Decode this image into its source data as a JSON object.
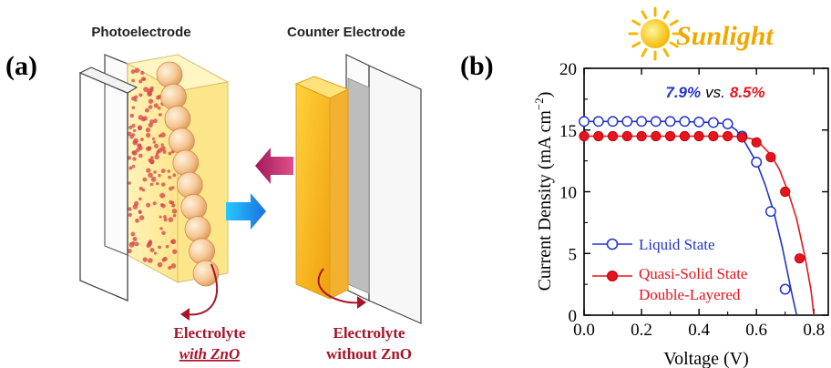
{
  "panel_a": {
    "label": "(a)",
    "photoelectrode_title": "Photoelectrode",
    "counter_title": "Counter Electrode",
    "electrolyte_left_line1": "Electrolyte",
    "electrolyte_left_line2": "with ZnO",
    "electrolyte_right_line1": "Electrolyte",
    "electrolyte_right_line2": "without ZnO"
  },
  "panel_b": {
    "label": "(b)",
    "sunlight_text": "Sunlight",
    "efficiency_liquid": "7.9%",
    "efficiency_vs": "vs.",
    "efficiency_quasi": "8.5%"
  },
  "colors": {
    "liquid": "#2233cc",
    "quasi": "#e8141c",
    "electrolyte_label": "#a8142a",
    "sun": "#f5b800",
    "sunlight_text": "#f0a800"
  },
  "chart_data": {
    "type": "line",
    "xlabel": "Voltage (V)",
    "ylabel": "Current Density (mA cm",
    "ylabel_sup": "−2",
    "ylabel_end": ")",
    "xlim": [
      0.0,
      0.85
    ],
    "ylim": [
      0,
      20
    ],
    "xticks": [
      "0.0",
      "0.2",
      "0.4",
      "0.6",
      "0.8"
    ],
    "yticks": [
      "0",
      "5",
      "10",
      "15",
      "20"
    ],
    "grid": false,
    "legend_position": "bottom-left",
    "series": [
      {
        "name": "Liquid State",
        "marker": "open-circle",
        "curve_x": [
          0.0,
          0.1,
          0.2,
          0.3,
          0.4,
          0.45,
          0.5,
          0.53,
          0.56,
          0.6,
          0.63,
          0.66,
          0.69,
          0.72,
          0.74
        ],
        "curve_y": [
          15.7,
          15.7,
          15.7,
          15.7,
          15.65,
          15.6,
          15.5,
          15.0,
          14.0,
          12.4,
          10.6,
          8.4,
          5.5,
          2.1,
          0.0
        ],
        "points_x": [
          0.0,
          0.05,
          0.1,
          0.15,
          0.2,
          0.25,
          0.3,
          0.35,
          0.4,
          0.45,
          0.5,
          0.55,
          0.6,
          0.65,
          0.7
        ],
        "points_y": [
          15.7,
          15.7,
          15.7,
          15.7,
          15.7,
          15.7,
          15.7,
          15.7,
          15.65,
          15.6,
          15.5,
          14.5,
          12.4,
          8.4,
          2.1
        ]
      },
      {
        "name": "Quasi-Solid State",
        "name_line2": "Double-Layered",
        "marker": "filled-circle",
        "curve_x": [
          0.0,
          0.1,
          0.2,
          0.3,
          0.4,
          0.5,
          0.55,
          0.6,
          0.65,
          0.68,
          0.71,
          0.74,
          0.77,
          0.79,
          0.8
        ],
        "curve_y": [
          14.5,
          14.5,
          14.5,
          14.5,
          14.5,
          14.5,
          14.45,
          14.2,
          13.0,
          11.8,
          10.0,
          7.8,
          4.6,
          2.0,
          0.0
        ],
        "points_x": [
          0.0,
          0.05,
          0.1,
          0.15,
          0.2,
          0.25,
          0.3,
          0.35,
          0.4,
          0.45,
          0.5,
          0.55,
          0.6,
          0.65,
          0.7,
          0.75
        ],
        "points_y": [
          14.5,
          14.5,
          14.5,
          14.5,
          14.5,
          14.5,
          14.5,
          14.5,
          14.5,
          14.5,
          14.5,
          14.4,
          14.0,
          12.8,
          10.0,
          4.6
        ]
      }
    ]
  }
}
